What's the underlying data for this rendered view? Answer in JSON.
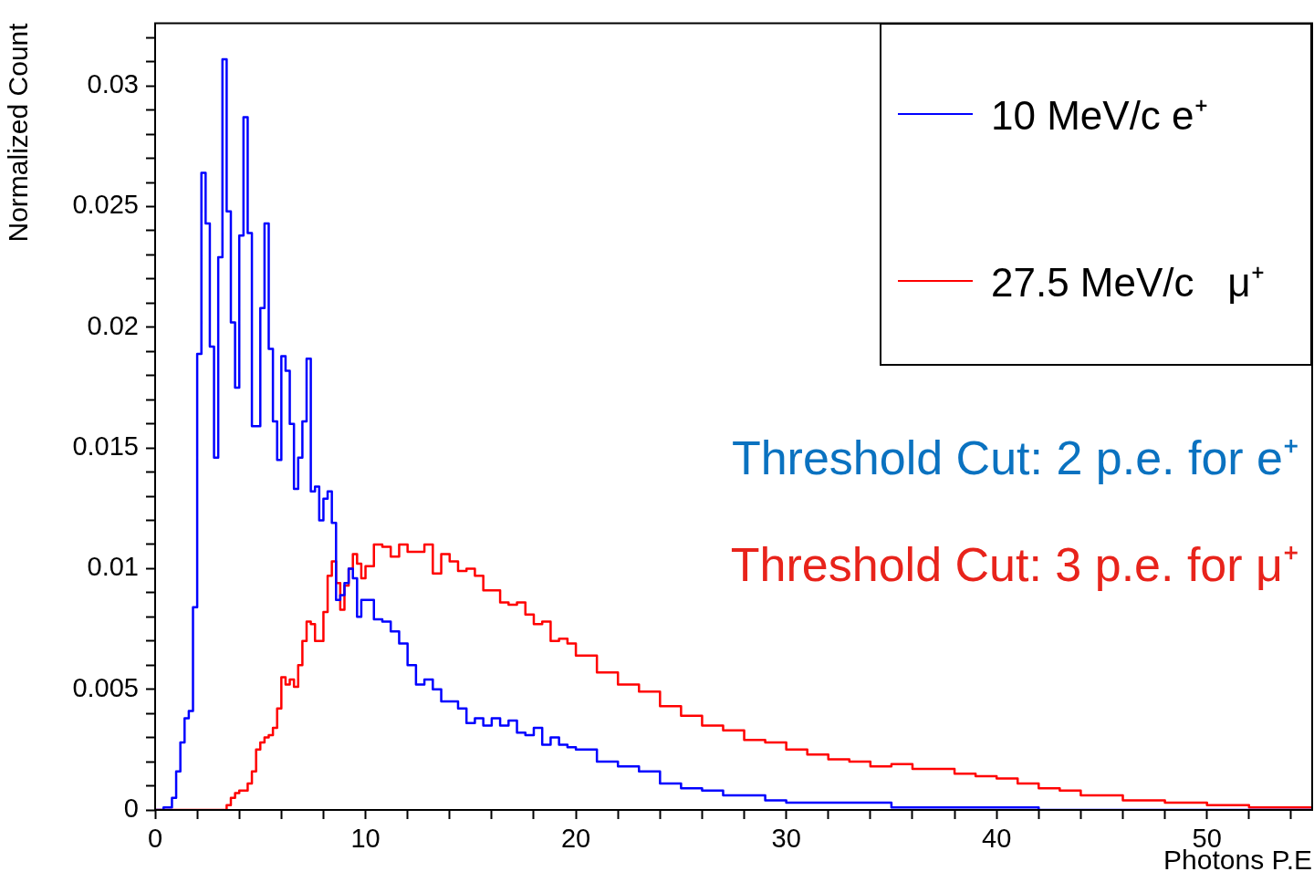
{
  "chart_data": {
    "type": "histogram",
    "xlabel": "Photons P.E",
    "ylabel": "Normalized Count",
    "bins": [
      0,
      0.2,
      0.4,
      0.6,
      0.8,
      1,
      1.2,
      1.4,
      1.6,
      1.8,
      2,
      2.2,
      2.4,
      2.6,
      2.8,
      3,
      3.2,
      3.4,
      3.6,
      3.8,
      4,
      4.2,
      4.4,
      4.6,
      4.8,
      5,
      5.2,
      5.4,
      5.6,
      5.8,
      6,
      6.2,
      6.4,
      6.6,
      6.8,
      7,
      7.2,
      7.4,
      7.6,
      7.8,
      8,
      8.2,
      8.4,
      8.6,
      8.8,
      9,
      9.2,
      9.4,
      9.6,
      9.8,
      10,
      10.4,
      10.8,
      11.2,
      11.6,
      12,
      12.4,
      12.8,
      13.2,
      13.6,
      14,
      14.4,
      14.8,
      15.2,
      15.6,
      16,
      16.4,
      16.8,
      17.2,
      17.6,
      18,
      18.4,
      18.8,
      19.2,
      19.6,
      20,
      21,
      22,
      23,
      24,
      25,
      26,
      27,
      28,
      29,
      30,
      31,
      32,
      33,
      34,
      35,
      36,
      37,
      38,
      39,
      40,
      41,
      42,
      43,
      44,
      45,
      46,
      47,
      48,
      49,
      50,
      51,
      52,
      53,
      54,
      55
    ],
    "series": [
      {
        "name": "10 MeV/c e⁺",
        "color": "#0000ff",
        "values": [
          0,
          0,
          0.0001,
          0.0001,
          0.0005,
          0.0016,
          0.0028,
          0.0038,
          0.0041,
          0.0084,
          0.0189,
          0.0264,
          0.0243,
          0.0192,
          0.0146,
          0.0229,
          0.0311,
          0.0248,
          0.0202,
          0.0175,
          0.0238,
          0.0287,
          0.0239,
          0.0159,
          0.0159,
          0.0208,
          0.0243,
          0.0191,
          0.0161,
          0.0145,
          0.0188,
          0.0182,
          0.016,
          0.0133,
          0.0146,
          0.0161,
          0.0187,
          0.0132,
          0.0134,
          0.012,
          0.0129,
          0.0132,
          0.0119,
          0.0087,
          0.0089,
          0.0094,
          0.01,
          0.0096,
          0.008,
          0.0087,
          0.0087,
          0.0079,
          0.0078,
          0.0074,
          0.0069,
          0.006,
          0.0052,
          0.0054,
          0.005,
          0.0045,
          0.0045,
          0.0042,
          0.0036,
          0.0038,
          0.0035,
          0.0038,
          0.0035,
          0.0037,
          0.0032,
          0.0031,
          0.0034,
          0.0027,
          0.003,
          0.0027,
          0.0026,
          0.0025,
          0.002,
          0.0018,
          0.0016,
          0.0011,
          0.0009,
          0.0008,
          0.0006,
          0.0006,
          0.0004,
          0.0003,
          0.0003,
          0.0003,
          0.0003,
          0.0003,
          0.0001,
          0.0001,
          0.0001,
          0.0001,
          0.0001,
          0.0001,
          0.0001,
          0,
          0,
          0,
          0,
          0,
          0,
          0,
          0,
          0,
          0,
          0,
          0,
          0
        ]
      },
      {
        "name": "27.5 MeV/c   μ⁺",
        "color": "#ff0000",
        "values": [
          0,
          0,
          0,
          0,
          0,
          0,
          0,
          0,
          0,
          0,
          0,
          0,
          0,
          0,
          0,
          0,
          0,
          0.0002,
          0.0005,
          0.0007,
          0.0008,
          0.0008,
          0.0011,
          0.0016,
          0.0025,
          0.0028,
          0.003,
          0.0031,
          0.0034,
          0.0042,
          0.0055,
          0.0052,
          0.0054,
          0.0051,
          0.006,
          0.007,
          0.0078,
          0.0077,
          0.007,
          0.007,
          0.0082,
          0.0097,
          0.0103,
          0.0094,
          0.0083,
          0.0093,
          0.01,
          0.0106,
          0.0102,
          0.0096,
          0.0101,
          0.011,
          0.0109,
          0.0105,
          0.011,
          0.0107,
          0.0107,
          0.011,
          0.0098,
          0.0106,
          0.0103,
          0.0099,
          0.01,
          0.0097,
          0.0091,
          0.0091,
          0.0086,
          0.0085,
          0.0086,
          0.0081,
          0.0077,
          0.0078,
          0.007,
          0.0071,
          0.0069,
          0.0064,
          0.0057,
          0.0052,
          0.0049,
          0.0043,
          0.0039,
          0.0035,
          0.0033,
          0.0029,
          0.0028,
          0.0025,
          0.0023,
          0.0021,
          0.002,
          0.0018,
          0.0019,
          0.0017,
          0.0017,
          0.0015,
          0.0014,
          0.0013,
          0.0011,
          0.0009,
          0.0008,
          0.0006,
          0.0006,
          0.0004,
          0.0004,
          0.0003,
          0.0003,
          0.0002,
          0.0002,
          0.0001,
          0.0001,
          0.0001
        ]
      }
    ],
    "xlim": [
      0,
      55
    ],
    "xticks": [
      0,
      {
        "value": 2,
        "label": null
      },
      {
        "value": 4,
        "label": null
      },
      {
        "value": 6,
        "label": null
      },
      {
        "value": 8,
        "label": null
      },
      10,
      {
        "value": 12,
        "label": null
      },
      {
        "value": 14,
        "label": null
      },
      {
        "value": 16,
        "label": null
      },
      {
        "value": 18,
        "label": null
      },
      20,
      {
        "value": 22,
        "label": null
      },
      {
        "value": 24,
        "label": null
      },
      {
        "value": 26,
        "label": null
      },
      {
        "value": 28,
        "label": null
      },
      30,
      {
        "value": 32,
        "label": null
      },
      {
        "value": 34,
        "label": null
      },
      {
        "value": 36,
        "label": null
      },
      {
        "value": 38,
        "label": null
      },
      40,
      {
        "value": 42,
        "label": null
      },
      {
        "value": 44,
        "label": null
      },
      {
        "value": 46,
        "label": null
      },
      {
        "value": 48,
        "label": null
      },
      50,
      {
        "value": 52,
        "label": null
      },
      {
        "value": 54,
        "label": null
      }
    ],
    "ylim": [
      0,
      0.0326
    ],
    "yticks": [
      0,
      {
        "value": 0.001,
        "label": null
      },
      {
        "value": 0.002,
        "label": null
      },
      {
        "value": 0.003,
        "label": null
      },
      {
        "value": 0.004,
        "label": null
      },
      0.005,
      {
        "value": 0.006,
        "label": null
      },
      {
        "value": 0.007,
        "label": null
      },
      {
        "value": 0.008,
        "label": null
      },
      {
        "value": 0.009,
        "label": null
      },
      0.01,
      {
        "value": 0.011,
        "label": null
      },
      {
        "value": 0.012,
        "label": null
      },
      {
        "value": 0.013,
        "label": null
      },
      {
        "value": 0.014,
        "label": null
      },
      0.015,
      {
        "value": 0.016,
        "label": null
      },
      {
        "value": 0.017,
        "label": null
      },
      {
        "value": 0.018,
        "label": null
      },
      {
        "value": 0.019,
        "label": null
      },
      0.02,
      {
        "value": 0.021,
        "label": null
      },
      {
        "value": 0.022,
        "label": null
      },
      {
        "value": 0.023,
        "label": null
      },
      {
        "value": 0.024,
        "label": null
      },
      0.025,
      {
        "value": 0.026,
        "label": null
      },
      {
        "value": 0.027,
        "label": null
      },
      {
        "value": 0.028,
        "label": null
      },
      {
        "value": 0.029,
        "label": null
      },
      0.03,
      {
        "value": 0.031,
        "label": null
      },
      {
        "value": 0.032,
        "label": null
      }
    ],
    "grid": false,
    "legend": "top right",
    "annotations": [
      "Threshold Cut: 2 p.e. for e⁺",
      "Threshold Cut: 3 p.e. for μ⁺"
    ]
  }
}
